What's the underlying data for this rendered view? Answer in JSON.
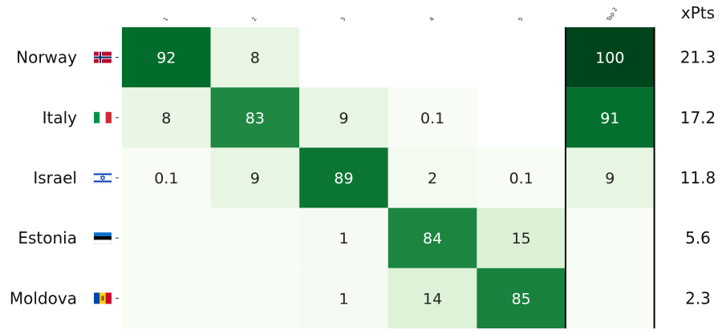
{
  "chart_data": {
    "type": "heatmap",
    "columns": [
      "1",
      "2",
      "3",
      "4",
      "5",
      "Top 2"
    ],
    "extra_column_header": "xPts",
    "rows": [
      {
        "country": "Norway",
        "flag": "norway-flag",
        "values": [
          92,
          8,
          null,
          null,
          null,
          100
        ],
        "labels": [
          "92",
          "8",
          "",
          "",
          "",
          "100"
        ],
        "xpts": "21.3"
      },
      {
        "country": "Italy",
        "flag": "italy-flag",
        "values": [
          8,
          83,
          9,
          0.1,
          null,
          91
        ],
        "labels": [
          "8",
          "83",
          "9",
          "0.1",
          "",
          "91"
        ],
        "xpts": "17.2"
      },
      {
        "country": "Israel",
        "flag": "israel-flag",
        "values": [
          0.1,
          9,
          89,
          2,
          0.1,
          9
        ],
        "labels": [
          "0.1",
          "9",
          "89",
          "2",
          "0.1",
          "9"
        ],
        "xpts": "11.8"
      },
      {
        "country": "Estonia",
        "flag": "estonia-flag",
        "values": [
          0,
          0,
          1,
          84,
          15,
          0
        ],
        "labels": [
          "",
          "",
          "1",
          "84",
          "15",
          ""
        ],
        "xpts": "5.6"
      },
      {
        "country": "Moldova",
        "flag": "moldova-flag",
        "values": [
          0,
          0,
          1,
          14,
          85,
          0
        ],
        "labels": [
          "",
          "",
          "1",
          "14",
          "85",
          ""
        ],
        "xpts": "2.3"
      }
    ],
    "color_scale": "greens",
    "value_range": [
      0,
      100
    ],
    "grid": false
  },
  "colors": {
    "zero_cell": "#f7fcf5",
    "low": "#edf8ea",
    "high": "#005a24",
    "text_dark": "#222222",
    "text_light": "#ffffff"
  }
}
